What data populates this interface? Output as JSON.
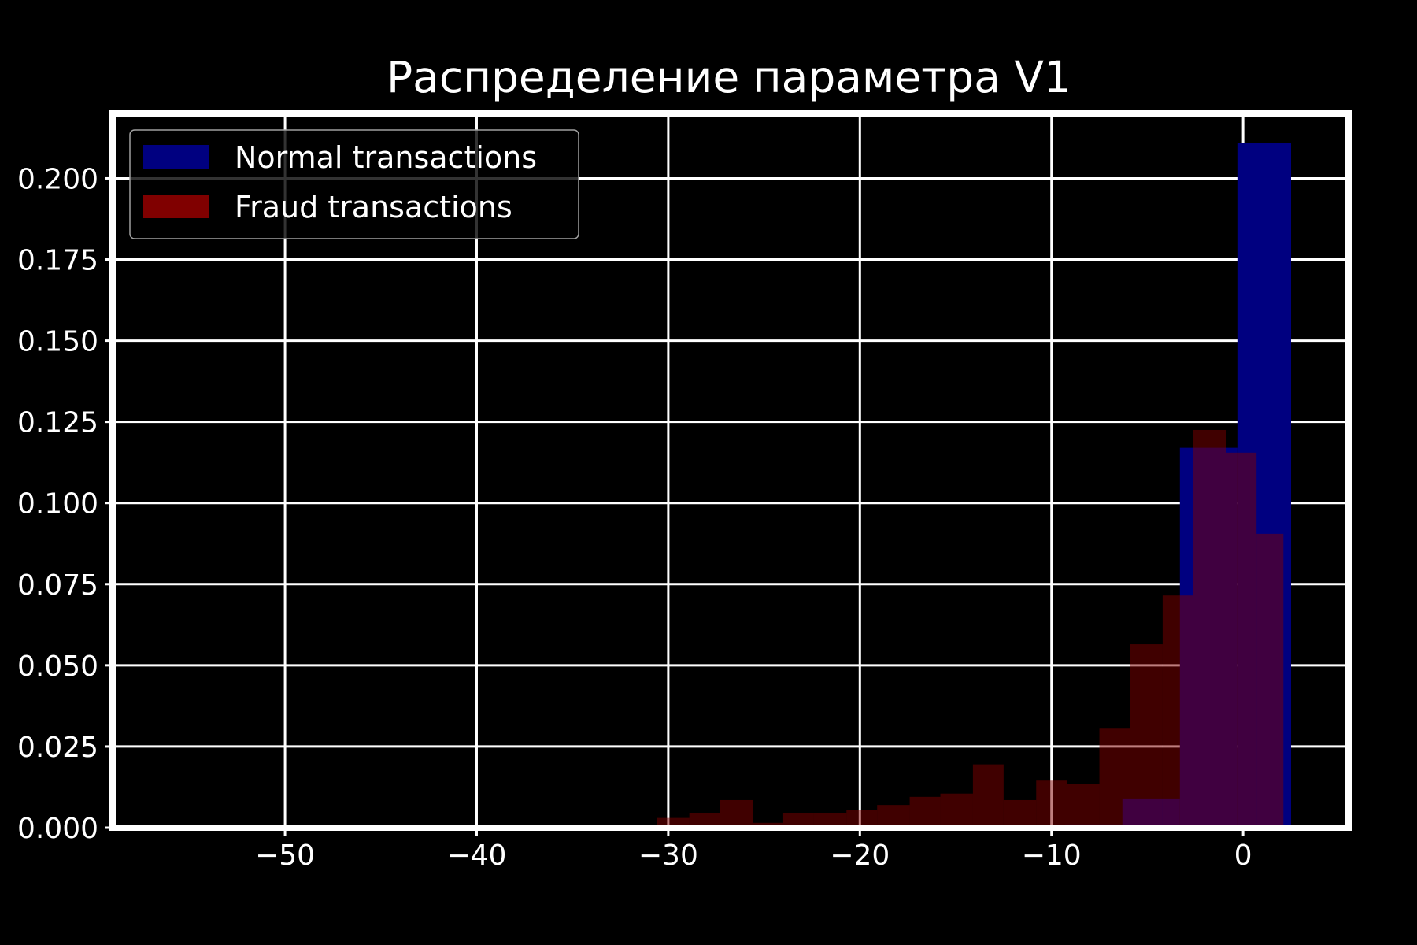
{
  "chart_data": {
    "type": "bar",
    "title": "Распределение параметра V1",
    "xlabel": "",
    "ylabel": "",
    "xlim": [
      -59,
      5.5
    ],
    "ylim": [
      0,
      0.22
    ],
    "x_ticks": [
      -50,
      -40,
      -30,
      -20,
      -10,
      0
    ],
    "x_tick_labels": [
      "−50",
      "−40",
      "−30",
      "−20",
      "−10",
      "0"
    ],
    "y_ticks": [
      0,
      0.025,
      0.05,
      0.075,
      0.1,
      0.125,
      0.15,
      0.175,
      0.2
    ],
    "y_tick_labels": [
      "0.000",
      "0.025",
      "0.050",
      "0.075",
      "0.100",
      "0.125",
      "0.150",
      "0.175",
      "0.200"
    ],
    "grid": true,
    "legend_position": "top-left",
    "series": [
      {
        "name": "Normal transactions",
        "color": "#000080",
        "bins": [
          {
            "x0": -9.3,
            "x1": -6.3,
            "value": 0.001
          },
          {
            "x0": -6.3,
            "x1": -3.3,
            "value": 0.009
          },
          {
            "x0": -3.3,
            "x1": -0.3,
            "value": 0.117
          },
          {
            "x0": -0.3,
            "x1": 2.5,
            "value": 0.211
          }
        ]
      },
      {
        "name": "Fraud transactions",
        "color": "#800000",
        "opacity": 0.5,
        "bins": [
          {
            "x0": -30.6,
            "x1": -28.9,
            "value": 0.003
          },
          {
            "x0": -28.9,
            "x1": -27.3,
            "value": 0.0045
          },
          {
            "x0": -27.3,
            "x1": -25.6,
            "value": 0.0085
          },
          {
            "x0": -25.6,
            "x1": -24.0,
            "value": 0.0015
          },
          {
            "x0": -24.0,
            "x1": -22.4,
            "value": 0.0045
          },
          {
            "x0": -22.4,
            "x1": -20.7,
            "value": 0.0045
          },
          {
            "x0": -20.7,
            "x1": -19.1,
            "value": 0.0055
          },
          {
            "x0": -19.1,
            "x1": -17.4,
            "value": 0.007
          },
          {
            "x0": -17.4,
            "x1": -15.8,
            "value": 0.0095
          },
          {
            "x0": -15.8,
            "x1": -14.1,
            "value": 0.0105
          },
          {
            "x0": -14.1,
            "x1": -12.5,
            "value": 0.0195
          },
          {
            "x0": -12.5,
            "x1": -10.8,
            "value": 0.0085
          },
          {
            "x0": -10.8,
            "x1": -9.2,
            "value": 0.0145
          },
          {
            "x0": -9.2,
            "x1": -7.5,
            "value": 0.0135
          },
          {
            "x0": -7.5,
            "x1": -5.9,
            "value": 0.0305
          },
          {
            "x0": -5.9,
            "x1": -4.2,
            "value": 0.0565
          },
          {
            "x0": -4.2,
            "x1": -2.6,
            "value": 0.0715
          },
          {
            "x0": -2.6,
            "x1": -0.9,
            "value": 0.1225
          },
          {
            "x0": -0.9,
            "x1": 0.7,
            "value": 0.1155
          },
          {
            "x0": 0.7,
            "x1": 2.1,
            "value": 0.0905
          }
        ]
      }
    ]
  },
  "colors": {
    "background": "#000000",
    "axes_frame": "#ffffff",
    "grid": "#ffffff",
    "text": "#ffffff"
  }
}
